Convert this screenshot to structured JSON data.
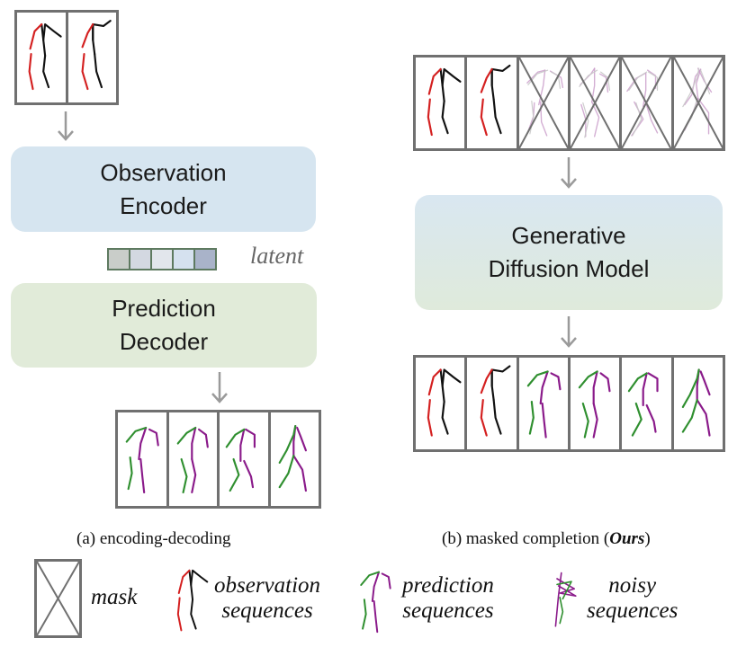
{
  "panel_a": {
    "encoder_line1": "Observation",
    "encoder_line2": "Encoder",
    "latent_label": "latent",
    "decoder_line1": "Prediction",
    "decoder_line2": "Decoder",
    "caption": "(a) encoding-decoding"
  },
  "panel_b": {
    "model_line1": "Generative",
    "model_line2": "Diffusion Model",
    "caption_prefix": "(b) masked completion (",
    "caption_emph": "Ours",
    "caption_suffix": ")"
  },
  "legend": {
    "mask": "mask",
    "observation_line1": "observation",
    "observation_line2": "sequences",
    "prediction_line1": "prediction",
    "prediction_line2": "sequences",
    "noisy_line1": "noisy",
    "noisy_line2": "sequences"
  },
  "colors": {
    "observation_primary": "#d42020",
    "observation_secondary": "#111111",
    "prediction_primary": "#8a1a8a",
    "prediction_secondary": "#2f8f2f",
    "noisy": "#c89ac8",
    "frame": "#707070",
    "arrow": "#9a9a9a",
    "latent_fills": [
      "#c9cdc9",
      "#d3d8e1",
      "#e2e6ec",
      "#d5e1ef",
      "#a9b3c9"
    ]
  }
}
